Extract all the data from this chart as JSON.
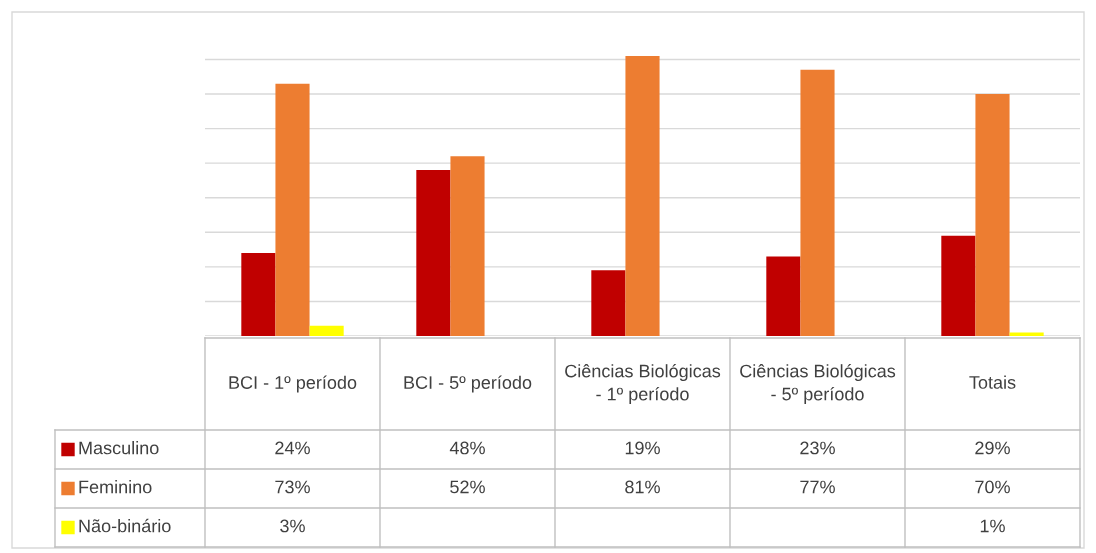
{
  "chart_data": {
    "type": "bar",
    "categories": [
      "BCI - 1º período",
      "BCI - 5º período",
      "Ciências Biológicas - 1º período",
      "Ciências Biológicas - 5º período",
      "Totais"
    ],
    "series": [
      {
        "name": "Masculino",
        "color": "#c00000",
        "values": [
          24,
          48,
          19,
          23,
          29
        ],
        "value_labels": [
          "24%",
          "48%",
          "19%",
          "23%",
          "29%"
        ]
      },
      {
        "name": "Feminino",
        "color": "#ed7d31",
        "values": [
          73,
          52,
          81,
          77,
          70
        ],
        "value_labels": [
          "73%",
          "52%",
          "81%",
          "77%",
          "70%"
        ]
      },
      {
        "name": "Não-binário",
        "color": "#ffff00",
        "values": [
          3,
          null,
          null,
          null,
          1
        ],
        "value_labels": [
          "3%",
          null,
          null,
          null,
          "1%"
        ]
      }
    ],
    "grid": "y",
    "tick_labels": "x",
    "legend": "bottom"
  }
}
